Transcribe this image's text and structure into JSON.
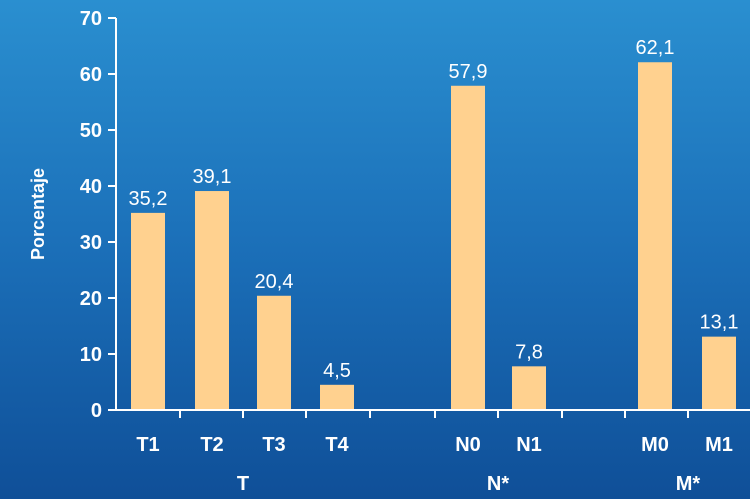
{
  "chart_data": {
    "type": "bar",
    "ylabel": "Porcentaje",
    "ylim": [
      0,
      70
    ],
    "yticks": [
      "0",
      "10",
      "20",
      "30",
      "40",
      "50",
      "60",
      "70"
    ],
    "bar_color": "#ffd18f",
    "groups": [
      {
        "label": "T",
        "bars": [
          {
            "category": "T1",
            "value": 35.2,
            "label": "35,2"
          },
          {
            "category": "T2",
            "value": 39.1,
            "label": "39,1"
          },
          {
            "category": "T3",
            "value": 20.4,
            "label": "20,4"
          },
          {
            "category": "T4",
            "value": 4.5,
            "label": "4,5"
          }
        ]
      },
      {
        "label": "N*",
        "bars": [
          {
            "category": "N0",
            "value": 57.9,
            "label": "57,9"
          },
          {
            "category": "N1",
            "value": 7.8,
            "label": "7,8"
          }
        ]
      },
      {
        "label": "M*",
        "bars": [
          {
            "category": "M0",
            "value": 62.1,
            "label": "62,1"
          },
          {
            "category": "M1",
            "value": 13.1,
            "label": "13,1"
          }
        ]
      }
    ]
  }
}
